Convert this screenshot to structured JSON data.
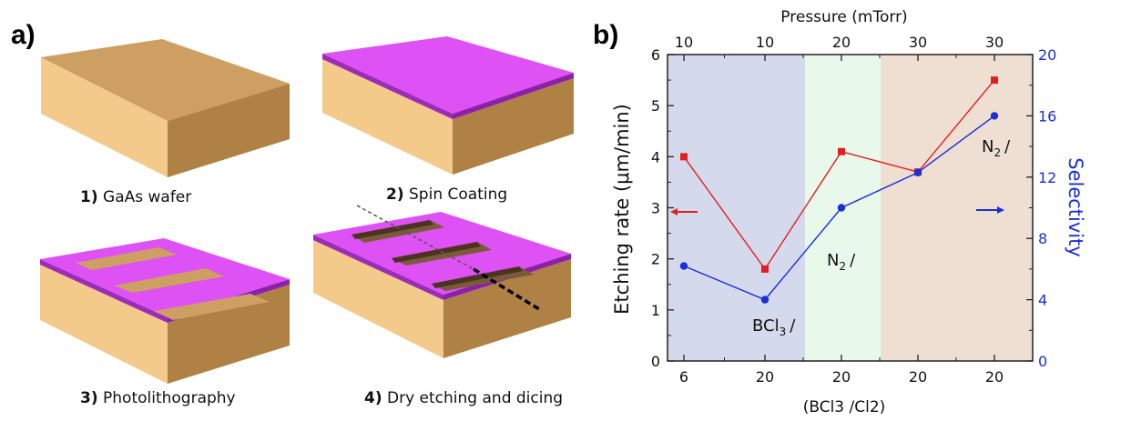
{
  "panel_a": {
    "label": "a)",
    "steps": [
      {
        "num": "1)",
        "text": "GaAs wafer"
      },
      {
        "num": "2)",
        "text": "Spin Coating"
      },
      {
        "num": "3)",
        "text": "Photolithography"
      },
      {
        "num": "4)",
        "text": "Dry etching and dicing"
      }
    ],
    "colors": {
      "wafer_top": "#cd9f63",
      "wafer_side": "#f3ca89",
      "wafer_front": "#b08144",
      "resist_top": "#de51f4",
      "resist_side": "#8b21a8"
    }
  },
  "panel_b": {
    "label": "b)",
    "chart_data": {
      "type": "line",
      "top_xlabel": "Pressure (mTorr)",
      "top_ticks": [
        "10",
        "10",
        "20",
        "30",
        "30"
      ],
      "bottom_xlabel": "(BCl3 /Cl2)",
      "bottom_ticks": [
        "6",
        "20",
        "20",
        "20",
        "20"
      ],
      "ylabel_left": "Etching rate (μm/min)",
      "ylabel_right": "Selectivity",
      "ylim_left": [
        0,
        6
      ],
      "ylim_right": [
        0,
        20
      ],
      "yticks_left": [
        "0",
        "1",
        "2",
        "3",
        "4",
        "5",
        "6"
      ],
      "yticks_right": [
        "0",
        "4",
        "8",
        "12",
        "16",
        "20"
      ],
      "series": [
        {
          "axis": "left",
          "color": "#e02020",
          "marker": "square",
          "values": [
            4.0,
            1.8,
            4.1,
            3.7,
            5.5
          ]
        },
        {
          "axis": "right",
          "color": "#1a2fd6",
          "marker": "circle",
          "values": [
            6.2,
            4.0,
            10.0,
            12.3,
            16.0
          ]
        }
      ],
      "regions": [
        {
          "color": "#d4daeb"
        },
        {
          "color": "#e8f8ea"
        },
        {
          "color": "#efdfd2"
        }
      ],
      "annotations": [
        {
          "main": "BCl",
          "sub": "3"
        },
        {
          "main": "N",
          "sub": "2"
        },
        {
          "main": "N",
          "sub": "2"
        }
      ],
      "arrow_up_glyph": "/",
      "arrows": {
        "left": "left-arrow",
        "right": "right-arrow"
      },
      "grid": false
    }
  }
}
